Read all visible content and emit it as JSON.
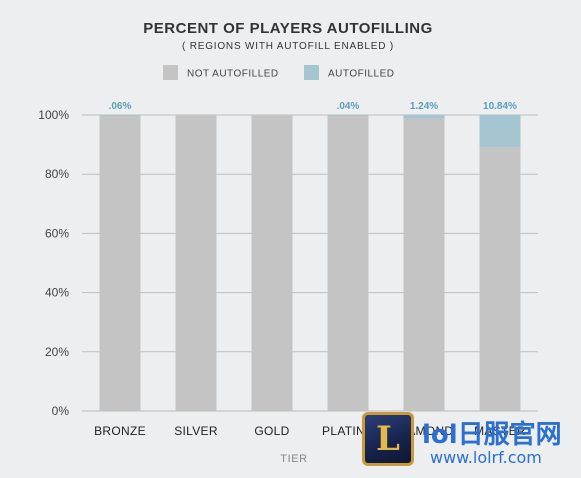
{
  "chart_data": {
    "type": "bar",
    "stacked": true,
    "title": "PERCENT OF PLAYERS AUTOFILLING",
    "subtitle": "( REGIONS WITH AUTOFILL ENABLED )",
    "xlabel": "TIER",
    "ylabel": "",
    "ylim": [
      0,
      100
    ],
    "yticks": [
      "0%",
      "20%",
      "40%",
      "60%",
      "80%",
      "100%"
    ],
    "ytick_values": [
      0,
      20,
      40,
      60,
      80,
      100
    ],
    "grid": true,
    "legend_position": "top",
    "categories": [
      "BRONZE",
      "SILVER",
      "GOLD",
      "PLATINU",
      "DIAMOND",
      "MASTER"
    ],
    "series": [
      {
        "name": "NOT AUTOFILLED",
        "color": "#c4c4c4",
        "values": [
          99.94,
          100,
          100,
          99.96,
          98.76,
          89.16
        ]
      },
      {
        "name": "AUTOFILLED",
        "color": "#a3c6d0",
        "values": [
          0.06,
          0,
          0,
          0.04,
          1.24,
          10.84
        ]
      }
    ],
    "data_labels": [
      ".06%",
      "",
      "",
      ".04%",
      "1.24%",
      "10.84%"
    ]
  },
  "watermark": {
    "logo_letter": "L",
    "text_main": "lol日服官网",
    "text_url": "www.lolrf.com"
  }
}
